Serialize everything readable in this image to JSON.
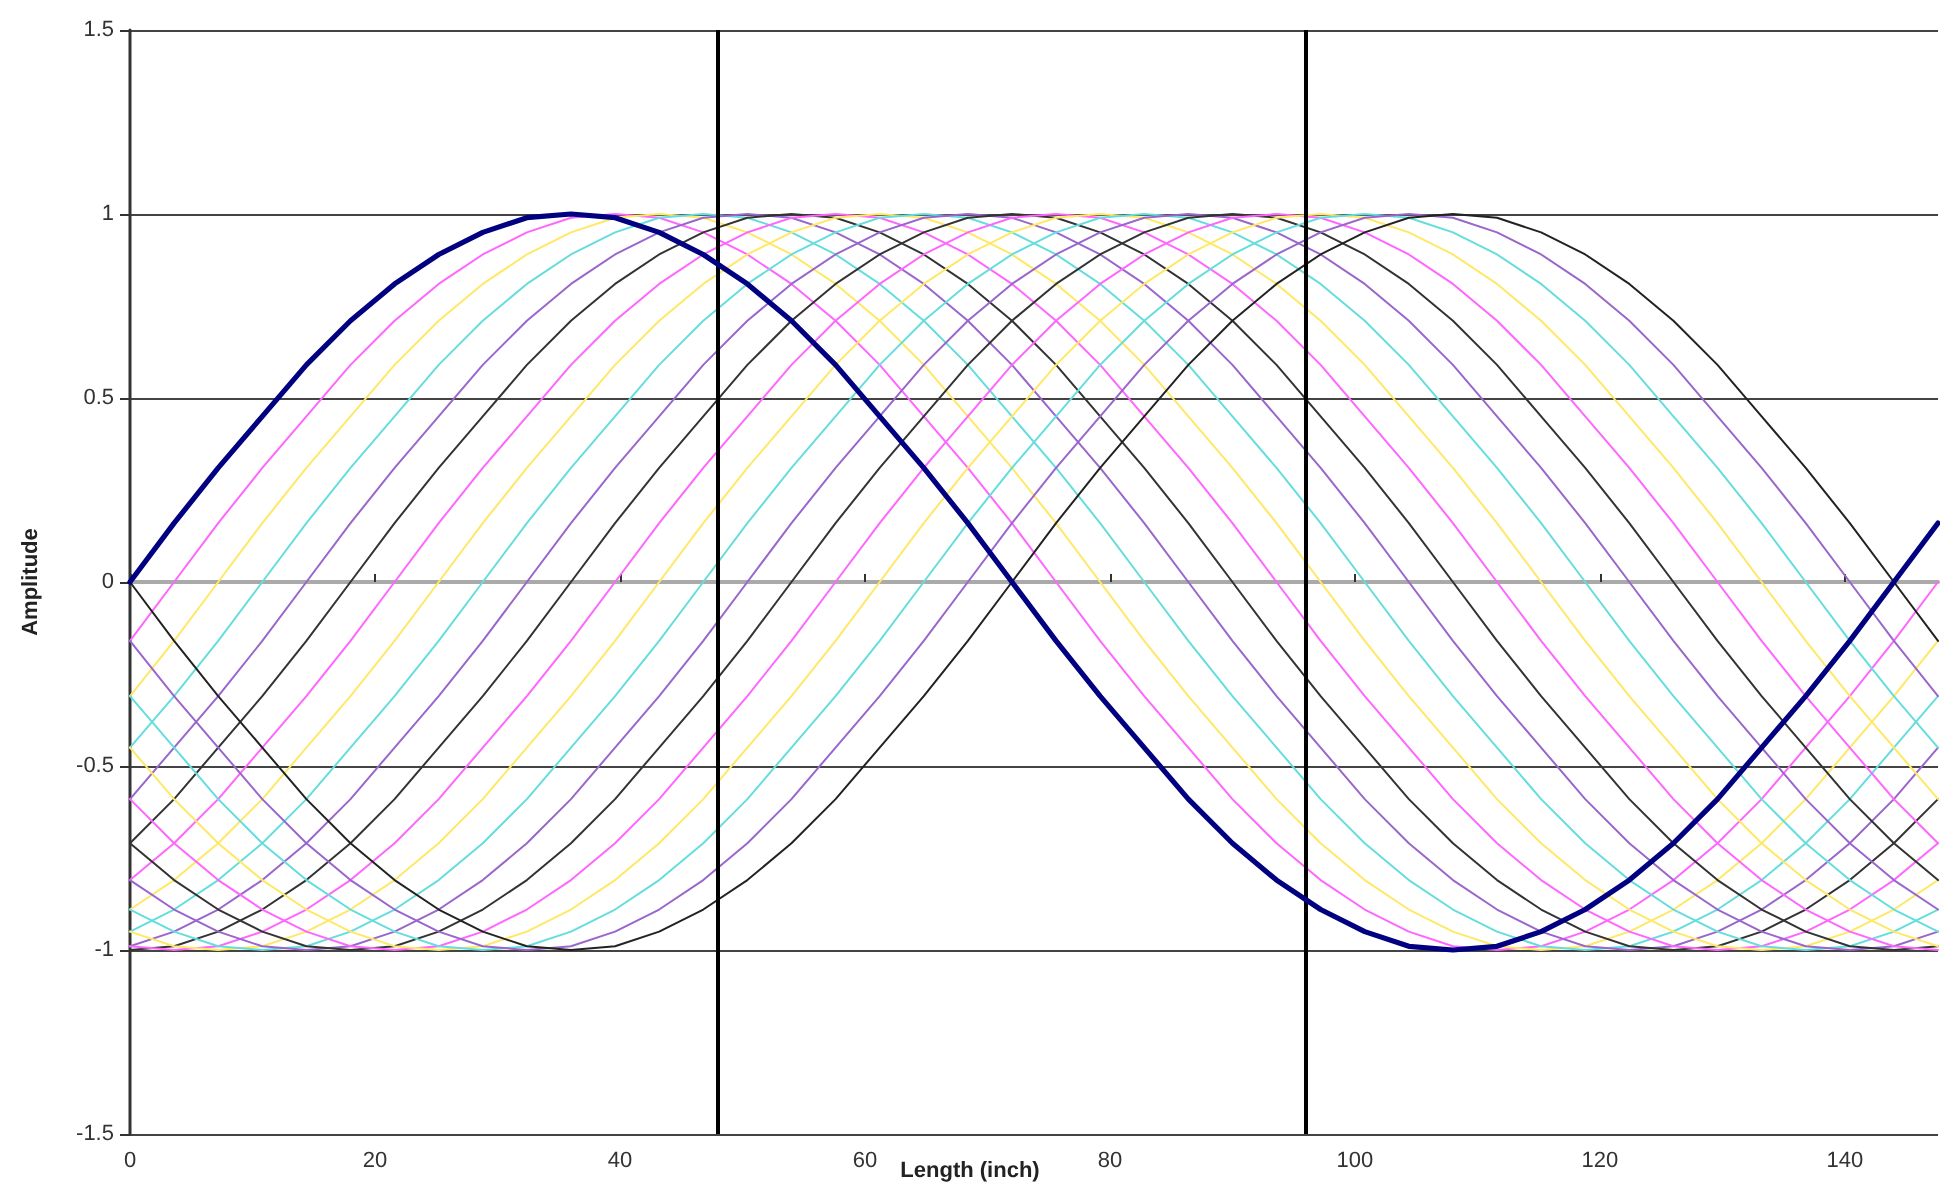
{
  "chart_data": {
    "type": "line",
    "xlabel": "Length (inch)",
    "ylabel": "Amplitude",
    "x": [
      0,
      3.6,
      7.2,
      10.8,
      14.4,
      18,
      21.6,
      25.2,
      28.8,
      32.4,
      36,
      39.6,
      43.2,
      46.8,
      50.4,
      54,
      57.6,
      61.2,
      64.8,
      68.4,
      72,
      75.6,
      79.2,
      82.8,
      86.4,
      90,
      93.6,
      97.2,
      100.8,
      104.4,
      108,
      111.6,
      115.2,
      118.8,
      122.4,
      126,
      129.6,
      133.2,
      136.8,
      140.4,
      144,
      147.6
    ],
    "xlim": [
      0,
      147.6
    ],
    "xticks": [
      0,
      20,
      40,
      60,
      80,
      100,
      120,
      140
    ],
    "ylim": [
      -1.5,
      1.5
    ],
    "yticks": [
      -1.5,
      -1,
      -0.5,
      0,
      0.5,
      1,
      1.5
    ],
    "grid": "y",
    "marker": "none",
    "line_style": "solid",
    "ref_lines": [
      {
        "axis": "x",
        "value": 48,
        "color": "#000000"
      },
      {
        "axis": "x",
        "value": 96,
        "color": "#000000"
      }
    ],
    "series": [
      {
        "color": "#000080",
        "values": [
          0,
          0.16,
          0.31,
          0.45,
          0.59,
          0.71,
          0.81,
          0.89,
          0.95,
          0.99,
          1,
          0.99,
          0.95,
          0.89,
          0.81,
          0.71,
          0.59,
          0.45,
          0.31,
          0.16,
          0,
          -0.16,
          -0.31,
          -0.45,
          -0.59,
          -0.71,
          -0.81,
          -0.89,
          -0.95,
          -0.99,
          -1,
          -0.99,
          -0.95,
          -0.89,
          -0.81,
          -0.71,
          -0.59,
          -0.45,
          -0.31,
          -0.16,
          0,
          0.16
        ]
      },
      {
        "color": "#ff66ff",
        "values": [
          -0.16,
          0,
          0.16,
          0.31,
          0.45,
          0.59,
          0.71,
          0.81,
          0.89,
          0.95,
          0.99,
          1,
          0.99,
          0.95,
          0.89,
          0.81,
          0.71,
          0.59,
          0.45,
          0.31,
          0.16,
          0,
          -0.16,
          -0.31,
          -0.45,
          -0.59,
          -0.71,
          -0.81,
          -0.89,
          -0.95,
          -0.99,
          -1,
          -0.99,
          -0.95,
          -0.89,
          -0.81,
          -0.71,
          -0.59,
          -0.45,
          -0.31,
          -0.16,
          0
        ]
      },
      {
        "color": "#ffe866",
        "values": [
          -0.31,
          -0.16,
          0,
          0.16,
          0.31,
          0.45,
          0.59,
          0.71,
          0.81,
          0.89,
          0.95,
          0.99,
          1,
          0.99,
          0.95,
          0.89,
          0.81,
          0.71,
          0.59,
          0.45,
          0.31,
          0.16,
          0,
          -0.16,
          -0.31,
          -0.45,
          -0.59,
          -0.71,
          -0.81,
          -0.89,
          -0.95,
          -0.99,
          -1,
          -0.99,
          -0.95,
          -0.89,
          -0.81,
          -0.71,
          -0.59,
          -0.45,
          -0.31,
          -0.16
        ]
      },
      {
        "color": "#66dddd",
        "values": [
          -0.45,
          -0.31,
          -0.16,
          0,
          0.16,
          0.31,
          0.45,
          0.59,
          0.71,
          0.81,
          0.89,
          0.95,
          0.99,
          1,
          0.99,
          0.95,
          0.89,
          0.81,
          0.71,
          0.59,
          0.45,
          0.31,
          0.16,
          0,
          -0.16,
          -0.31,
          -0.45,
          -0.59,
          -0.71,
          -0.81,
          -0.89,
          -0.95,
          -0.99,
          -1,
          -0.99,
          -0.95,
          -0.89,
          -0.81,
          -0.71,
          -0.59,
          -0.45,
          -0.31
        ]
      },
      {
        "color": "#9966cc",
        "values": [
          -0.59,
          -0.45,
          -0.31,
          -0.16,
          0,
          0.16,
          0.31,
          0.45,
          0.59,
          0.71,
          0.81,
          0.89,
          0.95,
          0.99,
          1,
          0.99,
          0.95,
          0.89,
          0.81,
          0.71,
          0.59,
          0.45,
          0.31,
          0.16,
          0,
          -0.16,
          -0.31,
          -0.45,
          -0.59,
          -0.71,
          -0.81,
          -0.89,
          -0.95,
          -0.99,
          -1,
          -0.99,
          -0.95,
          -0.89,
          -0.81,
          -0.71,
          -0.59,
          -0.45
        ]
      },
      {
        "color": "#333333",
        "values": [
          -0.71,
          -0.59,
          -0.45,
          -0.31,
          -0.16,
          0,
          0.16,
          0.31,
          0.45,
          0.59,
          0.71,
          0.81,
          0.89,
          0.95,
          0.99,
          1,
          0.99,
          0.95,
          0.89,
          0.81,
          0.71,
          0.59,
          0.45,
          0.31,
          0.16,
          0,
          -0.16,
          -0.31,
          -0.45,
          -0.59,
          -0.71,
          -0.81,
          -0.89,
          -0.95,
          -0.99,
          -1,
          -0.99,
          -0.95,
          -0.89,
          -0.81,
          -0.71,
          -0.59
        ]
      },
      {
        "color": "#ff66ff",
        "values": [
          -0.81,
          -0.71,
          -0.59,
          -0.45,
          -0.31,
          -0.16,
          0,
          0.16,
          0.31,
          0.45,
          0.59,
          0.71,
          0.81,
          0.89,
          0.95,
          0.99,
          1,
          0.99,
          0.95,
          0.89,
          0.81,
          0.71,
          0.59,
          0.45,
          0.31,
          0.16,
          0,
          -0.16,
          -0.31,
          -0.45,
          -0.59,
          -0.71,
          -0.81,
          -0.89,
          -0.95,
          -0.99,
          -1,
          -0.99,
          -0.95,
          -0.89,
          -0.81,
          -0.71
        ]
      },
      {
        "color": "#ffe866",
        "values": [
          -0.89,
          -0.81,
          -0.71,
          -0.59,
          -0.45,
          -0.31,
          -0.16,
          0,
          0.16,
          0.31,
          0.45,
          0.59,
          0.71,
          0.81,
          0.89,
          0.95,
          0.99,
          1,
          0.99,
          0.95,
          0.89,
          0.81,
          0.71,
          0.59,
          0.45,
          0.31,
          0.16,
          0,
          -0.16,
          -0.31,
          -0.45,
          -0.59,
          -0.71,
          -0.81,
          -0.89,
          -0.95,
          -0.99,
          -1,
          -0.99,
          -0.95,
          -0.89,
          -0.81
        ]
      },
      {
        "color": "#66dddd",
        "values": [
          -0.95,
          -0.89,
          -0.81,
          -0.71,
          -0.59,
          -0.45,
          -0.31,
          -0.16,
          0,
          0.16,
          0.31,
          0.45,
          0.59,
          0.71,
          0.81,
          0.89,
          0.95,
          0.99,
          1,
          0.99,
          0.95,
          0.89,
          0.81,
          0.71,
          0.59,
          0.45,
          0.31,
          0.16,
          0,
          -0.16,
          -0.31,
          -0.45,
          -0.59,
          -0.71,
          -0.81,
          -0.89,
          -0.95,
          -0.99,
          -1,
          -0.99,
          -0.95,
          -0.89
        ]
      },
      {
        "color": "#9966cc",
        "values": [
          -0.99,
          -0.95,
          -0.89,
          -0.81,
          -0.71,
          -0.59,
          -0.45,
          -0.31,
          -0.16,
          0,
          0.16,
          0.31,
          0.45,
          0.59,
          0.71,
          0.81,
          0.89,
          0.95,
          0.99,
          1,
          0.99,
          0.95,
          0.89,
          0.81,
          0.71,
          0.59,
          0.45,
          0.31,
          0.16,
          0,
          -0.16,
          -0.31,
          -0.45,
          -0.59,
          -0.71,
          -0.81,
          -0.89,
          -0.95,
          -0.99,
          -1,
          -0.99,
          -0.95
        ]
      },
      {
        "color": "#333333",
        "values": [
          -1,
          -0.99,
          -0.95,
          -0.89,
          -0.81,
          -0.71,
          -0.59,
          -0.45,
          -0.31,
          -0.16,
          0,
          0.16,
          0.31,
          0.45,
          0.59,
          0.71,
          0.81,
          0.89,
          0.95,
          0.99,
          1,
          0.99,
          0.95,
          0.89,
          0.81,
          0.71,
          0.59,
          0.45,
          0.31,
          0.16,
          0,
          -0.16,
          -0.31,
          -0.45,
          -0.59,
          -0.71,
          -0.81,
          -0.89,
          -0.95,
          -0.99,
          -1,
          -0.99
        ]
      },
      {
        "color": "#ff66ff",
        "values": [
          -0.99,
          -1,
          -0.99,
          -0.95,
          -0.89,
          -0.81,
          -0.71,
          -0.59,
          -0.45,
          -0.31,
          -0.16,
          0,
          0.16,
          0.31,
          0.45,
          0.59,
          0.71,
          0.81,
          0.89,
          0.95,
          0.99,
          1,
          0.99,
          0.95,
          0.89,
          0.81,
          0.71,
          0.59,
          0.45,
          0.31,
          0.16,
          0,
          -0.16,
          -0.31,
          -0.45,
          -0.59,
          -0.71,
          -0.81,
          -0.89,
          -0.95,
          -0.99,
          -1
        ]
      },
      {
        "color": "#ffe866",
        "values": [
          -0.95,
          -0.99,
          -1,
          -0.99,
          -0.95,
          -0.89,
          -0.81,
          -0.71,
          -0.59,
          -0.45,
          -0.31,
          -0.16,
          0,
          0.16,
          0.31,
          0.45,
          0.59,
          0.71,
          0.81,
          0.89,
          0.95,
          0.99,
          1,
          0.99,
          0.95,
          0.89,
          0.81,
          0.71,
          0.59,
          0.45,
          0.31,
          0.16,
          0,
          -0.16,
          -0.31,
          -0.45,
          -0.59,
          -0.71,
          -0.81,
          -0.89,
          -0.95,
          -0.99
        ]
      },
      {
        "color": "#66dddd",
        "values": [
          -0.89,
          -0.95,
          -0.99,
          -1,
          -0.99,
          -0.95,
          -0.89,
          -0.81,
          -0.71,
          -0.59,
          -0.45,
          -0.31,
          -0.16,
          0,
          0.16,
          0.31,
          0.45,
          0.59,
          0.71,
          0.81,
          0.89,
          0.95,
          0.99,
          1,
          0.99,
          0.95,
          0.89,
          0.81,
          0.71,
          0.59,
          0.45,
          0.31,
          0.16,
          0,
          -0.16,
          -0.31,
          -0.45,
          -0.59,
          -0.71,
          -0.81,
          -0.89,
          -0.95
        ]
      },
      {
        "color": "#9966cc",
        "values": [
          -0.81,
          -0.89,
          -0.95,
          -0.99,
          -1,
          -0.99,
          -0.95,
          -0.89,
          -0.81,
          -0.71,
          -0.59,
          -0.45,
          -0.31,
          -0.16,
          0,
          0.16,
          0.31,
          0.45,
          0.59,
          0.71,
          0.81,
          0.89,
          0.95,
          0.99,
          1,
          0.99,
          0.95,
          0.89,
          0.81,
          0.71,
          0.59,
          0.45,
          0.31,
          0.16,
          0,
          -0.16,
          -0.31,
          -0.45,
          -0.59,
          -0.71,
          -0.81,
          -0.89
        ]
      },
      {
        "color": "#333333",
        "values": [
          -0.71,
          -0.81,
          -0.89,
          -0.95,
          -0.99,
          -1,
          -0.99,
          -0.95,
          -0.89,
          -0.81,
          -0.71,
          -0.59,
          -0.45,
          -0.31,
          -0.16,
          0,
          0.16,
          0.31,
          0.45,
          0.59,
          0.71,
          0.81,
          0.89,
          0.95,
          0.99,
          1,
          0.99,
          0.95,
          0.89,
          0.81,
          0.71,
          0.59,
          0.45,
          0.31,
          0.16,
          0,
          -0.16,
          -0.31,
          -0.45,
          -0.59,
          -0.71,
          -0.81
        ]
      },
      {
        "color": "#ff66ff",
        "values": [
          -0.59,
          -0.71,
          -0.81,
          -0.89,
          -0.95,
          -0.99,
          -1,
          -0.99,
          -0.95,
          -0.89,
          -0.81,
          -0.71,
          -0.59,
          -0.45,
          -0.31,
          -0.16,
          0,
          0.16,
          0.31,
          0.45,
          0.59,
          0.71,
          0.81,
          0.89,
          0.95,
          0.99,
          1,
          0.99,
          0.95,
          0.89,
          0.81,
          0.71,
          0.59,
          0.45,
          0.31,
          0.16,
          0,
          -0.16,
          -0.31,
          -0.45,
          -0.59,
          -0.71
        ]
      },
      {
        "color": "#ffe866",
        "values": [
          -0.45,
          -0.59,
          -0.71,
          -0.81,
          -0.89,
          -0.95,
          -0.99,
          -1,
          -0.99,
          -0.95,
          -0.89,
          -0.81,
          -0.71,
          -0.59,
          -0.45,
          -0.31,
          -0.16,
          0,
          0.16,
          0.31,
          0.45,
          0.59,
          0.71,
          0.81,
          0.89,
          0.95,
          0.99,
          1,
          0.99,
          0.95,
          0.89,
          0.81,
          0.71,
          0.59,
          0.45,
          0.31,
          0.16,
          0,
          -0.16,
          -0.31,
          -0.45,
          -0.59
        ]
      },
      {
        "color": "#66dddd",
        "values": [
          -0.31,
          -0.45,
          -0.59,
          -0.71,
          -0.81,
          -0.89,
          -0.95,
          -0.99,
          -1,
          -0.99,
          -0.95,
          -0.89,
          -0.81,
          -0.71,
          -0.59,
          -0.45,
          -0.31,
          -0.16,
          0,
          0.16,
          0.31,
          0.45,
          0.59,
          0.71,
          0.81,
          0.89,
          0.95,
          0.99,
          1,
          0.99,
          0.95,
          0.89,
          0.81,
          0.71,
          0.59,
          0.45,
          0.31,
          0.16,
          0,
          -0.16,
          -0.31,
          -0.45
        ]
      },
      {
        "color": "#9966cc",
        "values": [
          -0.16,
          -0.31,
          -0.45,
          -0.59,
          -0.71,
          -0.81,
          -0.89,
          -0.95,
          -0.99,
          -1,
          -0.99,
          -0.95,
          -0.89,
          -0.81,
          -0.71,
          -0.59,
          -0.45,
          -0.31,
          -0.16,
          0,
          0.16,
          0.31,
          0.45,
          0.59,
          0.71,
          0.81,
          0.89,
          0.95,
          0.99,
          1,
          0.99,
          0.95,
          0.89,
          0.81,
          0.71,
          0.59,
          0.45,
          0.31,
          0.16,
          0,
          -0.16,
          -0.31
        ]
      },
      {
        "color": "#222222",
        "values": [
          0,
          -0.16,
          -0.31,
          -0.45,
          -0.59,
          -0.71,
          -0.81,
          -0.89,
          -0.95,
          -0.99,
          -1,
          -0.99,
          -0.95,
          -0.89,
          -0.81,
          -0.71,
          -0.59,
          -0.45,
          -0.31,
          -0.16,
          0,
          0.16,
          0.31,
          0.45,
          0.59,
          0.71,
          0.81,
          0.89,
          0.95,
          0.99,
          1,
          0.99,
          0.95,
          0.89,
          0.81,
          0.71,
          0.59,
          0.45,
          0.31,
          0.16,
          0,
          -0.16
        ]
      }
    ]
  }
}
